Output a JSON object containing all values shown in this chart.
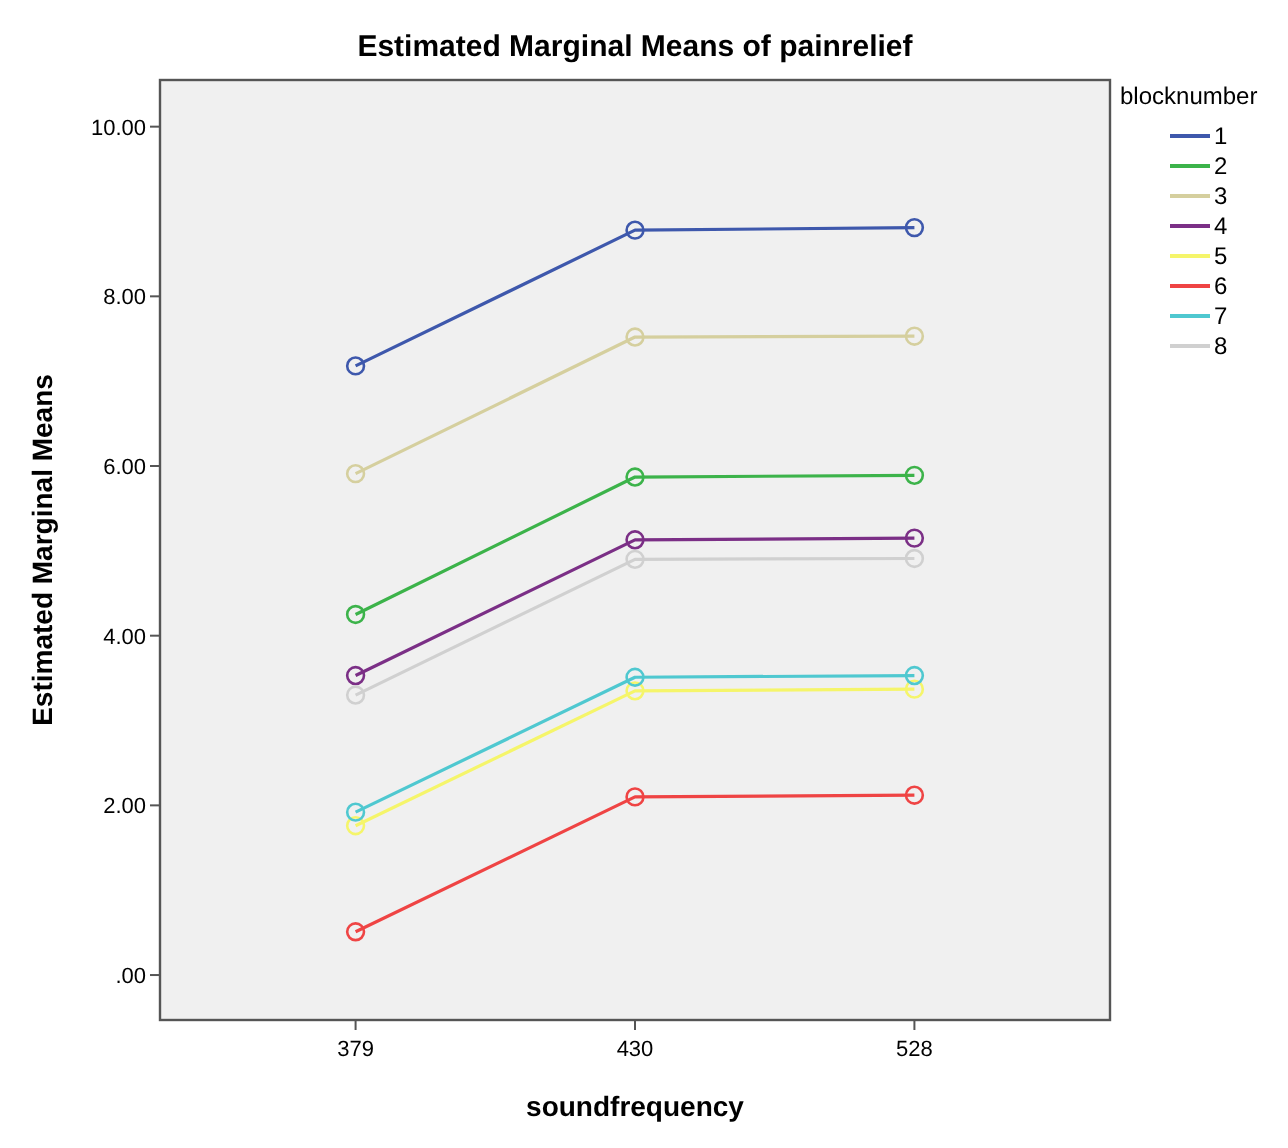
{
  "chart_data": {
    "type": "line",
    "title": "Estimated Marginal Means of painrelief",
    "xlabel": "soundfrequency",
    "ylabel": "Estimated Marginal Means",
    "legend_title": "blocknumber",
    "categories": [
      "379",
      "430",
      "528"
    ],
    "series": [
      {
        "name": "1",
        "color": "#3e58ac",
        "values": [
          7.18,
          8.78,
          8.81
        ]
      },
      {
        "name": "2",
        "color": "#3cb34a",
        "values": [
          4.25,
          5.87,
          5.89
        ]
      },
      {
        "name": "3",
        "color": "#d5cf9e",
        "values": [
          5.91,
          7.52,
          7.53
        ]
      },
      {
        "name": "4",
        "color": "#7b2f86",
        "values": [
          3.53,
          5.13,
          5.15
        ]
      },
      {
        "name": "5",
        "color": "#f5f56a",
        "values": [
          1.76,
          3.35,
          3.37
        ]
      },
      {
        "name": "6",
        "color": "#ef4444",
        "values": [
          0.51,
          2.1,
          2.12
        ]
      },
      {
        "name": "7",
        "color": "#4fc8d0",
        "values": [
          1.92,
          3.51,
          3.53
        ]
      },
      {
        "name": "8",
        "color": "#d0d0d0",
        "values": [
          3.3,
          4.9,
          4.91
        ]
      }
    ],
    "ylim": [
      -0.53,
      10.55
    ],
    "yticks": [
      {
        "value": 0,
        "label": ".00"
      },
      {
        "value": 2,
        "label": "2.00"
      },
      {
        "value": 4,
        "label": "4.00"
      },
      {
        "value": 6,
        "label": "6.00"
      },
      {
        "value": 8,
        "label": "8.00"
      },
      {
        "value": 10,
        "label": "10.00"
      }
    ],
    "marker": "circle",
    "line_style": "solid",
    "legend": "top right",
    "grid": false
  }
}
